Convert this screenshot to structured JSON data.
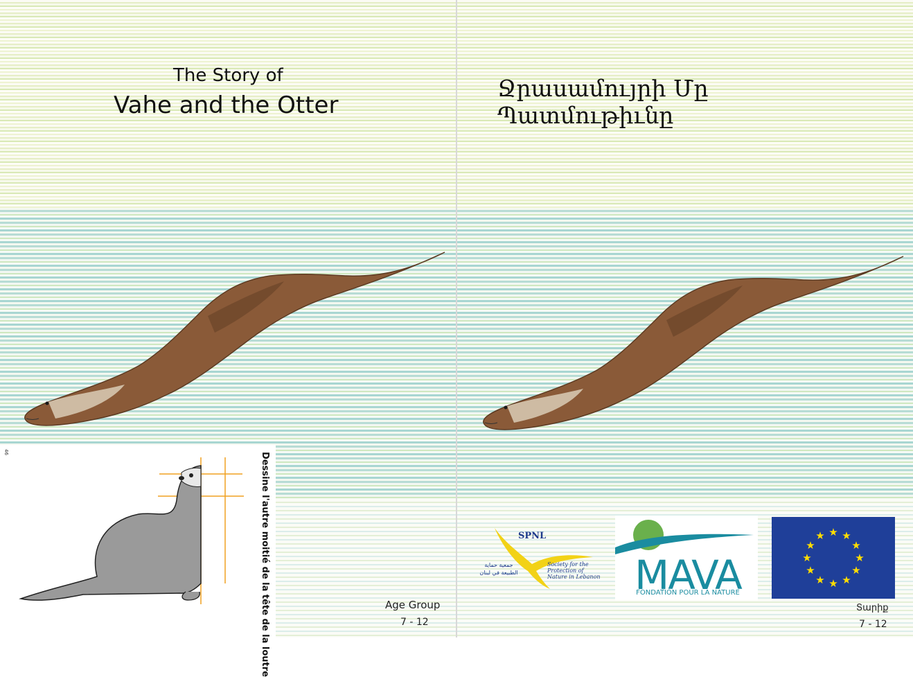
{
  "left_page": {
    "title_line1": "The Story of",
    "title_line2": "Vahe and the Otter",
    "activity_instruction": "Dessine l'autre moitié de la tête de la loutre",
    "page_number": "46",
    "age_group_label": "Age Group",
    "age_range": "7 - 12"
  },
  "right_page": {
    "title": "Ջրասամույրի Մը Պատմութիւնը",
    "age_group_label": "Տարիք",
    "age_range": "7 - 12"
  },
  "logos": {
    "spnl_name": "SPNL",
    "spnl_english": "Society for the Protection of Nature in Lebanon",
    "spnl_arabic": "جمعية حماية الطبيعة في لبنان",
    "mava_name": "MAVA",
    "mava_tagline": "FONDATION POUR LA NATURE"
  },
  "colors": {
    "otter_brown": "#8a5a38",
    "water_blue": "#a8d6d2",
    "grass_green": "#d9e9b6",
    "eu_blue": "#1f3f99",
    "eu_star": "#ffdd00",
    "mava_teal": "#1a8ca0",
    "guide_line_orange": "#f0a020"
  }
}
